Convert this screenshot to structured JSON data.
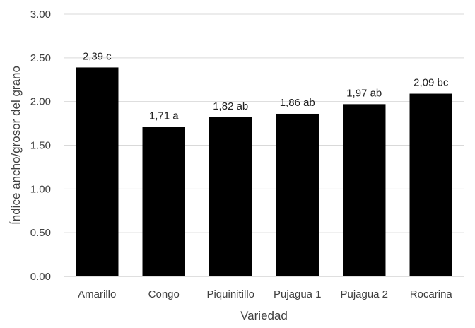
{
  "chart_data": {
    "type": "bar",
    "title": "",
    "xlabel": "Variedad",
    "ylabel": "Índice ancho/grosor del grano",
    "ylim": [
      0,
      3
    ],
    "yticks": [
      "0.00",
      "0.50",
      "1.00",
      "1.50",
      "2.00",
      "2.50",
      "3.00"
    ],
    "categories": [
      "Amarillo",
      "Congo",
      "Piquinitillo",
      "Pujagua 1",
      "Pujagua 2",
      "Rocarina"
    ],
    "values": [
      2.39,
      1.71,
      1.82,
      1.86,
      1.97,
      2.09
    ],
    "data_labels": [
      "2,39 c",
      "1,71 a",
      "1,82 ab",
      "1,86 ab",
      "1,97 ab",
      "2,09 bc"
    ],
    "grid": true,
    "legend": "none",
    "colors": {
      "bar": "#000000",
      "grid": "#d9d9d9",
      "axis": "#bfbfbf"
    }
  }
}
